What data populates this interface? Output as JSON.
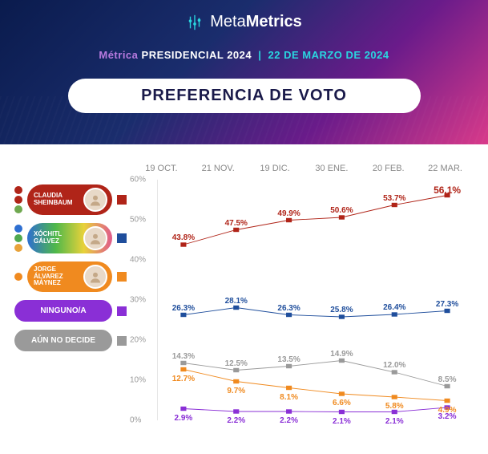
{
  "brand": {
    "part1": "Meta",
    "part2": "Metrics"
  },
  "subtitle": {
    "s1": "Métrica",
    "s2": "PRESIDENCIAL 2024",
    "s3": "22 DE MARZO DE 2024"
  },
  "title": "PREFERENCIA DE VOTO",
  "chart": {
    "type": "line",
    "categories": [
      "19 OCT.",
      "21 NOV.",
      "19 DIC.",
      "30 ENE.",
      "20 FEB.",
      "22 MAR."
    ],
    "ylim": [
      0,
      60
    ],
    "ytick_step": 10,
    "grid_color": "#e0e0e0",
    "background_color": "#ffffff",
    "label_fontsize": 10,
    "series": [
      {
        "key": "sheinbaum",
        "name": "CLAUDIA SHEINBAUM",
        "color": "#b02418",
        "pill_color": "#b02418",
        "swatch_color": "#b02418",
        "party_colors": [
          "#b02418",
          "#b02418",
          "#6fa84f"
        ],
        "has_avatar": true,
        "values": [
          43.8,
          47.5,
          49.9,
          50.6,
          53.7,
          56.1
        ],
        "label_dy": -14,
        "label_last_bold": true
      },
      {
        "key": "galvez",
        "name": "XÓCHITL GÁLVEZ",
        "color": "#1f4e9c",
        "pill_gradient": [
          "#2e6fd1",
          "#4fb84a",
          "#e8d23a",
          "#e05a8c"
        ],
        "swatch_color": "#1f4e9c",
        "party_colors": [
          "#2e6fd1",
          "#4fa84f",
          "#e8a23a"
        ],
        "has_avatar": true,
        "values": [
          26.3,
          28.1,
          26.3,
          25.8,
          26.4,
          27.3
        ],
        "label_dy": -14
      },
      {
        "key": "maynez",
        "name": "JORGE ÁLVAREZ MÁYNEZ",
        "color": "#f08a1f",
        "pill_color": "#f08a1f",
        "swatch_color": "#f08a1f",
        "party_colors": [
          "#f08a1f"
        ],
        "has_avatar": true,
        "values": [
          12.7,
          9.7,
          8.1,
          6.6,
          5.8,
          4.9
        ],
        "label_dy": 6
      },
      {
        "key": "ninguno",
        "name": "NINGUNO/A",
        "color": "#8a2fd6",
        "pill_color": "#8a2fd6",
        "swatch_color": "#8a2fd6",
        "simple": true,
        "values": [
          2.9,
          2.2,
          2.2,
          2.1,
          2.1,
          3.2
        ],
        "label_dy": 6
      },
      {
        "key": "undecided",
        "name": "AÚN NO DECIDE",
        "color": "#9a9a9a",
        "pill_color": "#9a9a9a",
        "swatch_color": "#9a9a9a",
        "simple": true,
        "values": [
          14.3,
          12.5,
          13.5,
          14.9,
          12.0,
          8.5
        ],
        "label_dy": -14
      }
    ]
  }
}
